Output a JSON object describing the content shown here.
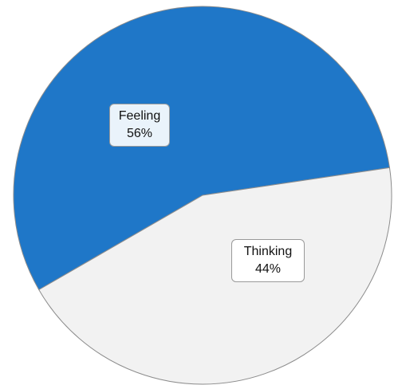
{
  "chart_data": {
    "type": "pie",
    "title": "",
    "slices": [
      {
        "label": "Feeling",
        "value": 56,
        "value_label": "56%",
        "color": "#1f77c8"
      },
      {
        "label": "Thinking",
        "value": 44,
        "value_label": "44%",
        "color": "#f2f2f2"
      }
    ],
    "legend": "none",
    "label_box_colors": {
      "Feeling": "#eaf3fb",
      "Thinking": "#ffffff"
    }
  }
}
